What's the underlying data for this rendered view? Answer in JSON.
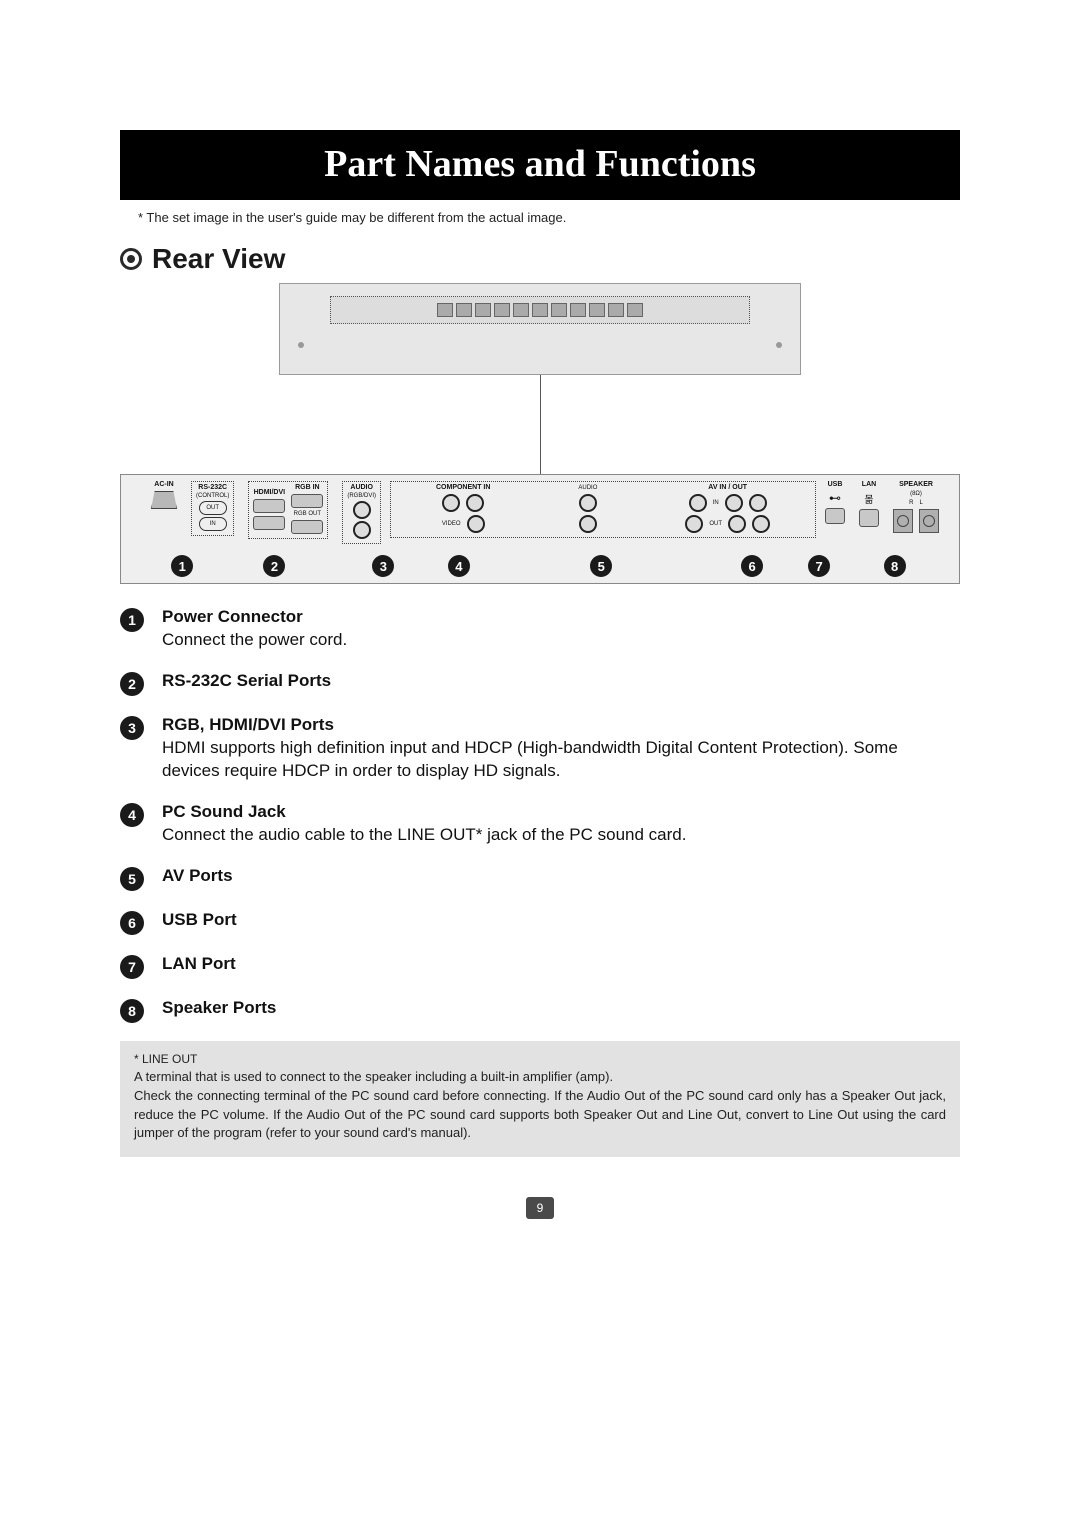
{
  "title": "Part Names and Functions",
  "disclaimer": "* The set image in the user's guide may be different from the actual image.",
  "section": {
    "title": "Rear View"
  },
  "panel_labels": {
    "ac_in": "AC-IN",
    "rs232c": "RS-232C",
    "rs232c_sub": "(CONTROL)",
    "out": "OUT",
    "in": "IN",
    "hdmi_dvi": "HDMI/DVI",
    "rgb_in": "RGB IN",
    "rgb_out": "RGB OUT",
    "audio": "AUDIO",
    "audio_sub": "(RGB/DVI)",
    "component_in": "COMPONENT IN",
    "video": "VIDEO",
    "av_in_out": "AV IN / OUT",
    "in_small": "IN",
    "out_small": "OUT",
    "usb": "USB",
    "lan": "LAN",
    "speaker": "SPEAKER",
    "speaker_sub": "(8Ω)",
    "r": "R",
    "l": "L"
  },
  "badges": [
    {
      "n": "1",
      "left_pct": 6
    },
    {
      "n": "2",
      "left_pct": 17
    },
    {
      "n": "3",
      "left_pct": 30
    },
    {
      "n": "4",
      "left_pct": 39
    },
    {
      "n": "5",
      "left_pct": 56
    },
    {
      "n": "6",
      "left_pct": 74
    },
    {
      "n": "7",
      "left_pct": 82
    },
    {
      "n": "8",
      "left_pct": 91
    }
  ],
  "items": [
    {
      "n": "1",
      "title": "Power Connector",
      "desc": "Connect the power cord."
    },
    {
      "n": "2",
      "title": "RS-232C Serial Ports",
      "desc": ""
    },
    {
      "n": "3",
      "title": "RGB, HDMI/DVI Ports",
      "desc": "HDMI supports high definition input and HDCP (High-bandwidth Digital Content Protection). Some devices require HDCP in order to display HD signals."
    },
    {
      "n": "4",
      "title": "PC Sound Jack",
      "desc": "Connect the audio cable to the LINE OUT* jack of the PC sound card."
    },
    {
      "n": "5",
      "title": "AV Ports",
      "desc": ""
    },
    {
      "n": "6",
      "title": "USB Port",
      "desc": ""
    },
    {
      "n": "7",
      "title": "LAN Port",
      "desc": ""
    },
    {
      "n": "8",
      "title": "Speaker Ports",
      "desc": ""
    }
  ],
  "footnote": {
    "title": "* LINE OUT",
    "body": "A terminal that is used to connect to the speaker including a built-in amplifier (amp).\nCheck the connecting terminal of the PC sound card before connecting. If the Audio Out of the PC sound card only has a Speaker Out jack, reduce the PC volume. If the Audio Out of the PC sound card supports both Speaker Out and Line Out, convert to Line Out using the card jumper of the program (refer to your sound card's manual)."
  },
  "page_number": "9",
  "colors": {
    "title_bg": "#000000",
    "title_fg": "#ffffff",
    "panel_bg": "#efefef",
    "footnote_bg": "#e2e2e2",
    "badge_bg": "#1a1a1a",
    "badge_fg": "#ffffff",
    "text": "#111111"
  }
}
